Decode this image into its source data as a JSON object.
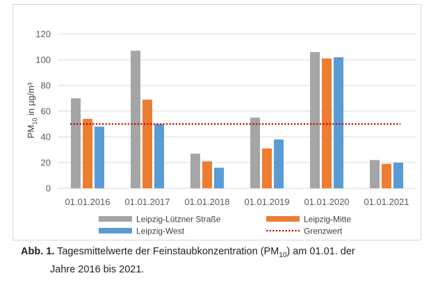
{
  "chart_data": {
    "type": "bar",
    "categories": [
      "01.01.2016",
      "01.01.2017",
      "01.01.2018",
      "01.01.2019",
      "01.01.2020",
      "01.01.2021"
    ],
    "series": [
      {
        "name": "Leipzig-Lützner Straße",
        "color": "#a5a5a5",
        "values": [
          70,
          107,
          27,
          55,
          106,
          22
        ]
      },
      {
        "name": "Leipzig-Mitte",
        "color": "#ed7d31",
        "values": [
          54,
          69,
          21,
          31,
          101,
          19
        ]
      },
      {
        "name": "Leipzig-West",
        "color": "#5b9bd5",
        "values": [
          48,
          50,
          16,
          38,
          102,
          20
        ]
      }
    ],
    "threshold": {
      "name": "Grenzwert",
      "value": 50,
      "color": "#c00000"
    },
    "ylabel_main": "PM",
    "ylabel_sub": "10",
    "ylabel_unit": " in µg/m³",
    "ylim": [
      0,
      120
    ],
    "yticks": [
      "0",
      "20",
      "40",
      "60",
      "80",
      "100",
      "120"
    ],
    "grid": true,
    "legend_position": "bottom"
  },
  "caption": {
    "prefix": "Abb. 1.",
    "text_part1": " Tagesmittelwerte der Feinstaubkonzentration (PM",
    "subscript": "10",
    "text_part2": ") am 01.01. der",
    "line2": "Jahre 2016 bis 2021."
  }
}
